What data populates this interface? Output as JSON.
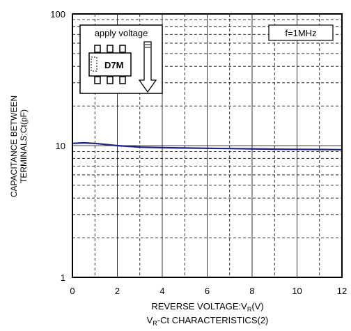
{
  "chart_data": {
    "type": "line",
    "title": "",
    "caption": {
      "prefix": "V",
      "sub": "R",
      "suffix": "-Ct CHARACTERISTICS(2)"
    },
    "xlabel": {
      "prefix": "REVERSE VOLTAGE:V",
      "sub": "R",
      "suffix": "(V)"
    },
    "ylabel": {
      "line1": "CAPACITANCE BETWEEN",
      "line2": "TERMINALS:Ct(pF)"
    },
    "xlim": [
      0,
      12
    ],
    "ylim": [
      1,
      100
    ],
    "yscale": "log",
    "grid": true,
    "x_ticks": [
      "0",
      "2",
      "4",
      "6",
      "8",
      "10",
      "12"
    ],
    "y_ticks": [
      "1",
      "10",
      "100"
    ],
    "series": [
      {
        "color": "#1a237e",
        "points": [
          [
            0,
            10.4
          ],
          [
            0.5,
            10.5
          ],
          [
            1,
            10.4
          ],
          [
            1.5,
            10.2
          ],
          [
            2,
            10.0
          ],
          [
            3,
            9.75
          ],
          [
            4,
            9.65
          ],
          [
            5,
            9.6
          ],
          [
            6,
            9.55
          ],
          [
            7,
            9.5
          ],
          [
            8,
            9.45
          ],
          [
            9,
            9.4
          ],
          [
            10,
            9.38
          ],
          [
            11,
            9.35
          ],
          [
            12,
            9.32
          ]
        ]
      }
    ],
    "annotations": {
      "condition": "f=1MHz",
      "inset_label": "apply voltage",
      "package_marking": "D7M"
    }
  }
}
